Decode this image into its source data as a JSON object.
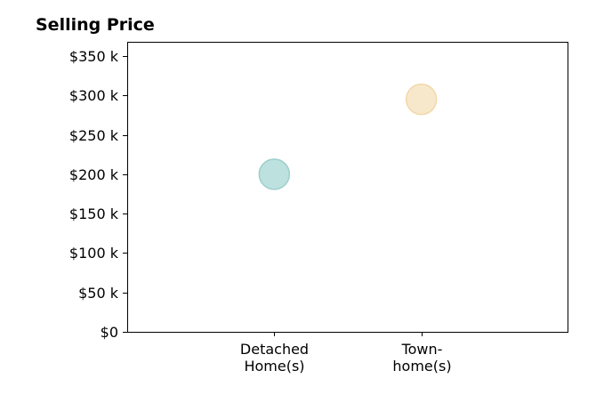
{
  "chart_data": {
    "type": "scatter",
    "title": "Selling Price",
    "categories": [
      "Detached Home(s)",
      "Town-home(s)"
    ],
    "category_label_lines": [
      [
        "Detached",
        "Home(s)"
      ],
      [
        "Town-",
        "home(s)"
      ]
    ],
    "values": [
      200,
      295
    ],
    "point_colors": [
      "#b2dcd9",
      "#f7e4c2"
    ],
    "point_stroke_colors": [
      "#9ccfcb",
      "#f2d8aa"
    ],
    "y_ticks": [
      0,
      50,
      100,
      150,
      200,
      250,
      300,
      350
    ],
    "y_tick_labels": [
      "$0",
      "$50 k",
      "$100 k",
      "$150 k",
      "$200 k",
      "$250 k",
      "$300 k",
      "$350 k"
    ],
    "ylim": [
      0,
      368
    ],
    "x_range": [
      0,
      3
    ],
    "grid": false,
    "xlabel": "",
    "ylabel": ""
  }
}
